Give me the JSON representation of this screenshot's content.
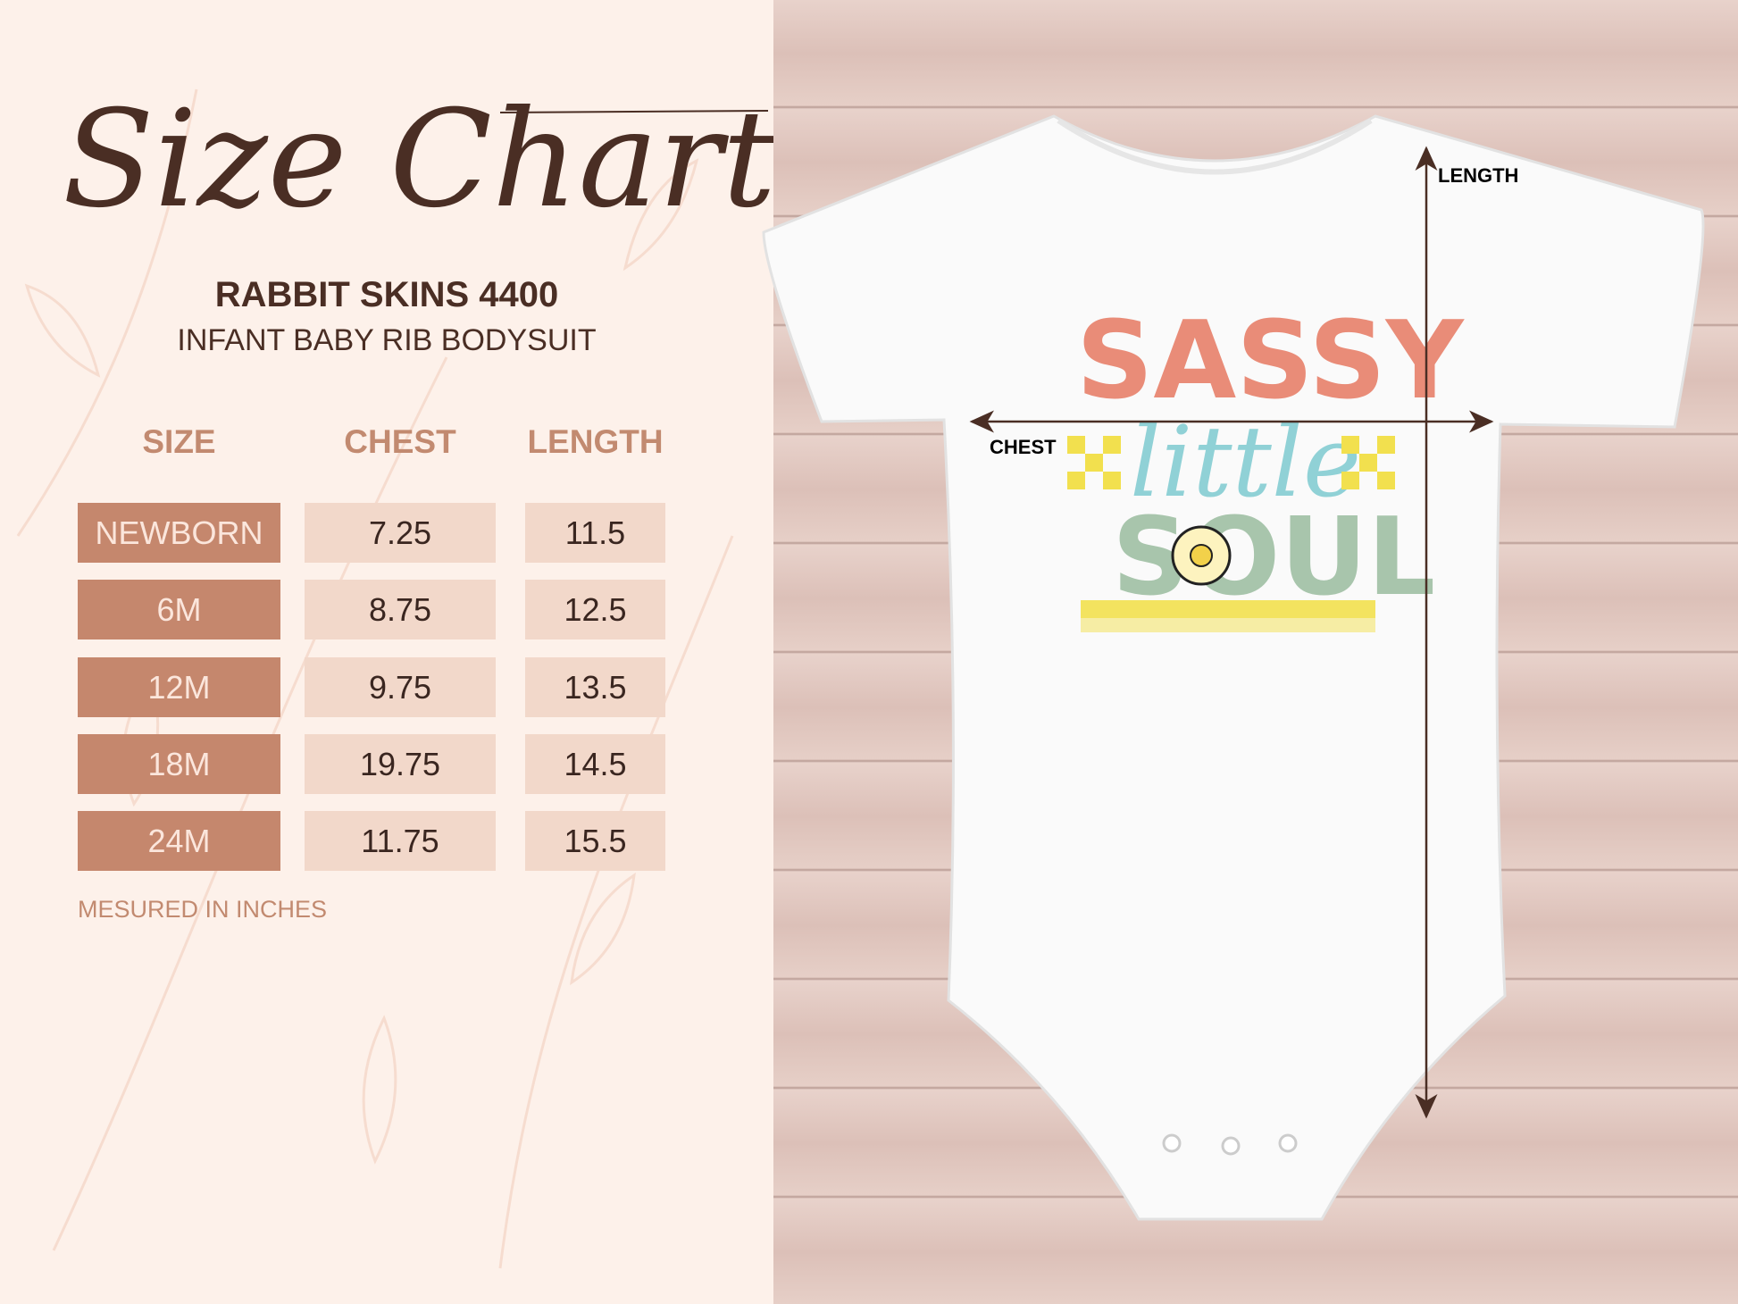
{
  "header": {
    "title": "Size Chart",
    "brand": "RABBIT SKINS 4400",
    "product": "INFANT BABY RIB BODYSUIT"
  },
  "table": {
    "columns": [
      "SIZE",
      "CHEST",
      "LENGTH"
    ],
    "rows": [
      {
        "size": "NEWBORN",
        "chest": "7.25",
        "length": "11.5"
      },
      {
        "size": "6M",
        "chest": "8.75",
        "length": "12.5"
      },
      {
        "size": "12M",
        "chest": "9.75",
        "length": "13.5"
      },
      {
        "size": "18M",
        "chest": "19.75",
        "length": "14.5"
      },
      {
        "size": "24M",
        "chest": "11.75",
        "length": "15.5"
      }
    ]
  },
  "footer": {
    "note": "MESURED IN INCHES"
  },
  "garment": {
    "chest_label": "CHEST",
    "length_label": "LENGTH",
    "design": {
      "line1": "SASSY",
      "line2": "little",
      "line3": "SOUL"
    }
  },
  "colors": {
    "accent": "#c5876d",
    "cell": "#f2d8ca",
    "text_dark": "#4a2e24",
    "header_text": "#c28a70"
  }
}
